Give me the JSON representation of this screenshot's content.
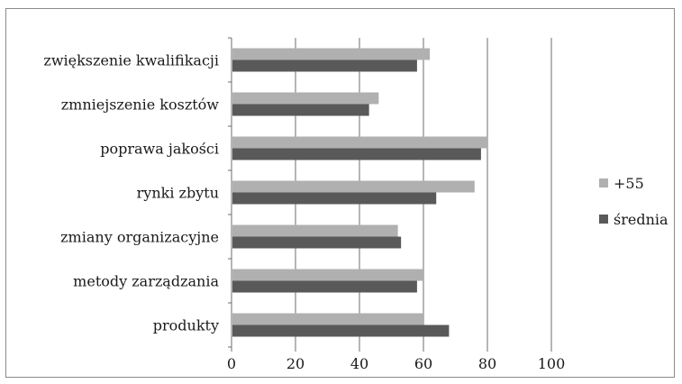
{
  "chart_data": {
    "type": "bar",
    "orientation": "horizontal",
    "categories": [
      "zwiększenie kwalifikacji",
      "zmniejszenie kosztów",
      "poprawa jakości",
      "rynki zbytu",
      "zmiany organizacyjne",
      "metody zarządzania",
      "produkty"
    ],
    "series": [
      {
        "name": "+55",
        "color": "#b0b0b0",
        "values": [
          62,
          46,
          80,
          76,
          52,
          60,
          60
        ]
      },
      {
        "name": "średnia",
        "color": "#595959",
        "values": [
          58,
          43,
          78,
          64,
          53,
          58,
          68
        ]
      }
    ],
    "xlim": [
      0,
      100
    ],
    "xticks": [
      0,
      20,
      40,
      60,
      80,
      100
    ],
    "grid": "vertical",
    "legend_position": "right"
  }
}
